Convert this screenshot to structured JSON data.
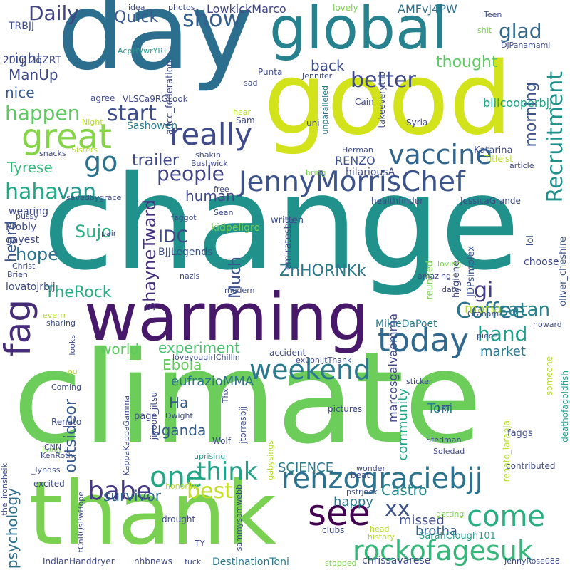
{
  "words": [
    {
      "text": "change",
      "color": "#21918c"
    },
    {
      "text": "climate",
      "color": "#6ccd5a"
    },
    {
      "text": "day",
      "color": "#2c6e8e"
    },
    {
      "text": "good",
      "color": "#d2e21b"
    },
    {
      "text": "global",
      "color": "#26828e"
    },
    {
      "text": "warming",
      "color": "#48186a"
    },
    {
      "text": "thank",
      "color": "#7ad151"
    },
    {
      "text": "renzograciebjj",
      "color": "#2c728e"
    },
    {
      "text": "JennyMorrisChef",
      "color": "#3b528b"
    },
    {
      "text": "rockofagesuk",
      "color": "#35b779"
    },
    {
      "text": "great",
      "color": "#86d549"
    },
    {
      "text": "weekend",
      "color": "#2a788e"
    },
    {
      "text": "vaccine",
      "color": "#32658e"
    },
    {
      "text": "today",
      "color": "#31688e"
    },
    {
      "text": "see",
      "color": "#440154"
    },
    {
      "text": "come",
      "color": "#29af7f"
    },
    {
      "text": "one",
      "color": "#22a785"
    },
    {
      "text": "Coffee",
      "color": "#2c728e"
    },
    {
      "text": "really",
      "color": "#3e4a89"
    },
    {
      "text": "think",
      "color": "#20a386"
    },
    {
      "text": "Recruitment",
      "color": "#21918c"
    },
    {
      "text": "fag",
      "color": "#472c7a"
    },
    {
      "text": "satan",
      "color": "#25848e"
    },
    {
      "text": "babe",
      "color": "#443983"
    },
    {
      "text": "best",
      "color": "#c2df23"
    },
    {
      "text": "xx",
      "color": "#3b528b"
    },
    {
      "text": "go",
      "color": "#2c728e"
    },
    {
      "text": "people",
      "color": "#414487"
    },
    {
      "text": "better",
      "color": "#3e4a89"
    },
    {
      "text": "show",
      "color": "#355f8d"
    },
    {
      "text": "start",
      "color": "#3e4c8a"
    },
    {
      "text": "happen",
      "color": "#5ec962"
    },
    {
      "text": "haha",
      "color": "#22a884"
    },
    {
      "text": "van",
      "color": "#1f988b"
    },
    {
      "text": "hand",
      "color": "#1f9e89"
    },
    {
      "text": "gi",
      "color": "#433e85"
    },
    {
      "text": "Daily",
      "color": "#414487"
    },
    {
      "text": "glad",
      "color": "#31688e"
    },
    {
      "text": "Quick",
      "color": "#38588c"
    },
    {
      "text": "thought",
      "color": "#5ec962"
    },
    {
      "text": "back",
      "color": "#3e4c8a"
    },
    {
      "text": "morning",
      "color": "#3b528b"
    },
    {
      "text": "trailer",
      "color": "#3e4989"
    },
    {
      "text": "human",
      "color": "#3f4788"
    },
    {
      "text": "IDC",
      "color": "#3e4a89"
    },
    {
      "text": "Sujo",
      "color": "#2ab07f"
    },
    {
      "text": "Much",
      "color": "#3b528b"
    },
    {
      "text": "shayneTward",
      "color": "#46307e"
    },
    {
      "text": "ZnHORNKk",
      "color": "#2a788e"
    },
    {
      "text": "TheRock",
      "color": "#27ad81"
    },
    {
      "text": "hope",
      "color": "#2d718e"
    },
    {
      "text": "heard",
      "color": "#39568c"
    },
    {
      "text": "Tyrese",
      "color": "#35b779"
    },
    {
      "text": "ManUp",
      "color": "#3e4989"
    },
    {
      "text": "right",
      "color": "#3d4e8a"
    },
    {
      "text": "nice",
      "color": "#38598c"
    },
    {
      "text": "maria",
      "color": "#b5de2b"
    },
    {
      "text": "market",
      "color": "#2a788e"
    },
    {
      "text": "world",
      "color": "#5ec962"
    },
    {
      "text": "experiment",
      "color": "#4ac16d"
    },
    {
      "text": "Ebola",
      "color": "#65cb5e"
    },
    {
      "text": "outsideor",
      "color": "#38598c"
    },
    {
      "text": "Ha",
      "color": "#375a8c"
    },
    {
      "text": "eufrazioMMA",
      "color": "#2c728e"
    },
    {
      "text": "Uganda",
      "color": "#365c8d"
    },
    {
      "text": "community",
      "color": "#21a685"
    },
    {
      "text": "Toni",
      "color": "#26828e"
    },
    {
      "text": "SCIENCE",
      "color": "#2a788e"
    },
    {
      "text": "Castro",
      "color": "#23898e"
    },
    {
      "text": "happy",
      "color": "#2a788e"
    },
    {
      "text": "missed",
      "color": "#3e4c8a"
    },
    {
      "text": "survivor",
      "color": "#31688e"
    },
    {
      "text": "brotha",
      "color": "#355f8d"
    },
    {
      "text": "psychology",
      "color": "#2d708e"
    },
    {
      "text": "marcosgalvaomma",
      "color": "#3f4788"
    },
    {
      "text": "LowkickMarco",
      "color": "#404688"
    },
    {
      "text": "AMFvJ4PW",
      "color": "#2d708e"
    },
    {
      "text": "billcooperbjj",
      "color": "#20a386"
    },
    {
      "text": "TRBJJ",
      "color": "#3e4a89"
    },
    {
      "text": "20LjL2qZRT",
      "color": "#3f4889"
    },
    {
      "text": "RENZO",
      "color": "#3b528b"
    },
    {
      "text": "hilariousA",
      "color": "#3e4a89"
    },
    {
      "text": "Katarina",
      "color": "#3e4a89"
    },
    {
      "text": "Sashowen",
      "color": "#2a788e"
    },
    {
      "text": "BJJLegends",
      "color": "#3b528b"
    },
    {
      "text": "kidpeligro",
      "color": "#73d056"
    },
    {
      "text": "lovatojrbjj",
      "color": "#3e4a89"
    },
    {
      "text": "Probly",
      "color": "#3e4a89"
    },
    {
      "text": "wearing",
      "color": "#3e4a89"
    },
    {
      "text": "gayest",
      "color": "#3e4a89"
    },
    {
      "text": "MikieDaPoet",
      "color": "#2a788e"
    },
    {
      "text": "emiratesbjj",
      "color": "#3e4a89"
    },
    {
      "text": "JDPsimplex",
      "color": "#3b528b"
    },
    {
      "text": "oliver_cheshire",
      "color": "#3b528b"
    },
    {
      "text": "lol",
      "color": "#3b528b"
    },
    {
      "text": "choose",
      "color": "#3e4a89"
    },
    {
      "text": "hygiene",
      "color": "#3e4a89"
    },
    {
      "text": "reunited",
      "color": "#7ad151"
    },
    {
      "text": "JessicaGrande",
      "color": "#3e4a89"
    },
    {
      "text": "healthfinder",
      "color": "#3e4a89"
    },
    {
      "text": "written",
      "color": "#3e4a89"
    },
    {
      "text": "Jennifer",
      "color": "#3e4a89"
    },
    {
      "text": "Punta",
      "color": "#3e4a89"
    },
    {
      "text": "Cain",
      "color": "#3e4a89"
    },
    {
      "text": "Syria",
      "color": "#3e4a89"
    },
    {
      "text": "takeeverytho",
      "color": "#3e4a89"
    },
    {
      "text": "unparalleled",
      "color": "#2a788e"
    },
    {
      "text": "uni",
      "color": "#3e4a89"
    },
    {
      "text": "Herman",
      "color": "#3e4a89"
    },
    {
      "text": "Titleist",
      "color": "#b5de2b"
    },
    {
      "text": "article",
      "color": "#3e4a89"
    },
    {
      "text": "adcc_federation",
      "color": "#3e4a89"
    },
    {
      "text": "VLSCa9RGLook",
      "color": "#3e4a89"
    },
    {
      "text": "agree",
      "color": "#3e4a89"
    },
    {
      "text": "AcpHVwrYRT",
      "color": "#2a9d8f"
    },
    {
      "text": "idea",
      "color": "#3e4a89"
    },
    {
      "text": "photos",
      "color": "#3e4a89"
    },
    {
      "text": "lovely",
      "color": "#7ad151"
    },
    {
      "text": "Teen",
      "color": "#3e4a89"
    },
    {
      "text": "shit",
      "color": "#7ad151"
    },
    {
      "text": "DjPanamami",
      "color": "#3e4a89"
    },
    {
      "text": "Sam",
      "color": "#3e4a89"
    },
    {
      "text": "hear",
      "color": "#b5de2b"
    },
    {
      "text": "sad",
      "color": "#3e4a89"
    },
    {
      "text": "Night",
      "color": "#b5de2b"
    },
    {
      "text": "Sisters",
      "color": "#b5de2b"
    },
    {
      "text": "snacks",
      "color": "#3e4a89"
    },
    {
      "text": "shakin",
      "color": "#3e4a89"
    },
    {
      "text": "Bushwick",
      "color": "#3e4a89"
    },
    {
      "text": "bring",
      "color": "#7ad151"
    },
    {
      "text": "free",
      "color": "#3e4a89"
    },
    {
      "text": "pussy",
      "color": "#3e4a89"
    },
    {
      "text": "savedbygrace",
      "color": "#3e4a89"
    },
    {
      "text": "Sean",
      "color": "#3e4a89"
    },
    {
      "text": "faggot",
      "color": "#3e4a89"
    },
    {
      "text": "pair",
      "color": "#3e4a89"
    },
    {
      "text": "Christ",
      "color": "#3e4a89"
    },
    {
      "text": "Brien",
      "color": "#3e4a89"
    },
    {
      "text": "nazis",
      "color": "#3e4a89"
    },
    {
      "text": "modern",
      "color": "#3e4a89"
    },
    {
      "text": "loving",
      "color": "#7ad151"
    },
    {
      "text": "amazing",
      "color": "#3e4a89"
    },
    {
      "text": "date",
      "color": "#3e4a89"
    },
    {
      "text": "Graham",
      "color": "#3e4a89"
    },
    {
      "text": "howard",
      "color": "#3e4a89"
    },
    {
      "text": "piece",
      "color": "#3e4a89"
    },
    {
      "text": "everrr",
      "color": "#b5de2b"
    },
    {
      "text": "sharing",
      "color": "#3e4a89"
    },
    {
      "text": "looks",
      "color": "#3e4a89"
    },
    {
      "text": "Coming",
      "color": "#3e4a89"
    },
    {
      "text": "loveyougirlChillin",
      "color": "#3e4a89"
    },
    {
      "text": "accident",
      "color": "#3e4a89"
    },
    {
      "text": "ex0onIJtThank",
      "color": "#3e4a89"
    },
    {
      "text": "sticker",
      "color": "#3e4a89"
    },
    {
      "text": "someone",
      "color": "#b5de2b"
    },
    {
      "text": "deathofagoldfish",
      "color": "#2a9d8f"
    },
    {
      "text": "renato_laranja",
      "color": "#b5de2b"
    },
    {
      "text": "Renato",
      "color": "#3e4a89"
    },
    {
      "text": "ou",
      "color": "#b5de2b"
    },
    {
      "text": "living",
      "color": "#7ad151"
    },
    {
      "text": "page",
      "color": "#3e4a89"
    },
    {
      "text": "Dwight",
      "color": "#3e4a89"
    },
    {
      "text": "jiyoon_jitsu",
      "color": "#3e4a89"
    },
    {
      "text": "Thx",
      "color": "#3e4a89"
    },
    {
      "text": "jtorresbjj",
      "color": "#3e4a89"
    },
    {
      "text": "pictures",
      "color": "#3e4a89"
    },
    {
      "text": "1RT",
      "color": "#3e4a89"
    },
    {
      "text": "Stedman",
      "color": "#3e4a89"
    },
    {
      "text": "Soledad",
      "color": "#3e4a89"
    },
    {
      "text": "faggs",
      "color": "#3e4a89"
    },
    {
      "text": "CNN",
      "color": "#3e4a89"
    },
    {
      "text": "KenRoth",
      "color": "#3e4a89"
    },
    {
      "text": "KappaKappaGamma",
      "color": "#3e4a89"
    },
    {
      "text": "uprising",
      "color": "#2a9d8f"
    },
    {
      "text": "Wolf",
      "color": "#3e4a89"
    },
    {
      "text": "beat",
      "color": "#3e4a89"
    },
    {
      "text": "honoring",
      "color": "#b5de2b"
    },
    {
      "text": "gabysings",
      "color": "#b5de2b"
    },
    {
      "text": "wonder",
      "color": "#3e4a89"
    },
    {
      "text": "contributed",
      "color": "#3e4a89"
    },
    {
      "text": "the_ironsheik",
      "color": "#3e4a89"
    },
    {
      "text": "_lyndss",
      "color": "#3e4a89"
    },
    {
      "text": "excited",
      "color": "#3e4a89"
    },
    {
      "text": "tCnRQsPwHope",
      "color": "#3e4a89"
    },
    {
      "text": "drought",
      "color": "#3e4a89"
    },
    {
      "text": "sammysamwebb",
      "color": "#3e4a89"
    },
    {
      "text": "pstrjack",
      "color": "#3e4a89"
    },
    {
      "text": "getting",
      "color": "#7ad151"
    },
    {
      "text": "head",
      "color": "#b5de2b"
    },
    {
      "text": "history",
      "color": "#b5de2b"
    },
    {
      "text": "clubs",
      "color": "#3e4a89"
    },
    {
      "text": "TY",
      "color": "#3e4a89"
    },
    {
      "text": "SarahClough101",
      "color": "#2a9d8f"
    },
    {
      "text": "JennyRose088",
      "color": "#3e4a89"
    },
    {
      "text": "IndianHanddryer",
      "color": "#3e4a89"
    },
    {
      "text": "nhbnews",
      "color": "#3e4a89"
    },
    {
      "text": "fuck",
      "color": "#3e4a89"
    },
    {
      "text": "DestinationToni",
      "color": "#2a788e"
    },
    {
      "text": "stopped",
      "color": "#7ad151"
    },
    {
      "text": "chrissavarese",
      "color": "#3e4a89"
    }
  ]
}
